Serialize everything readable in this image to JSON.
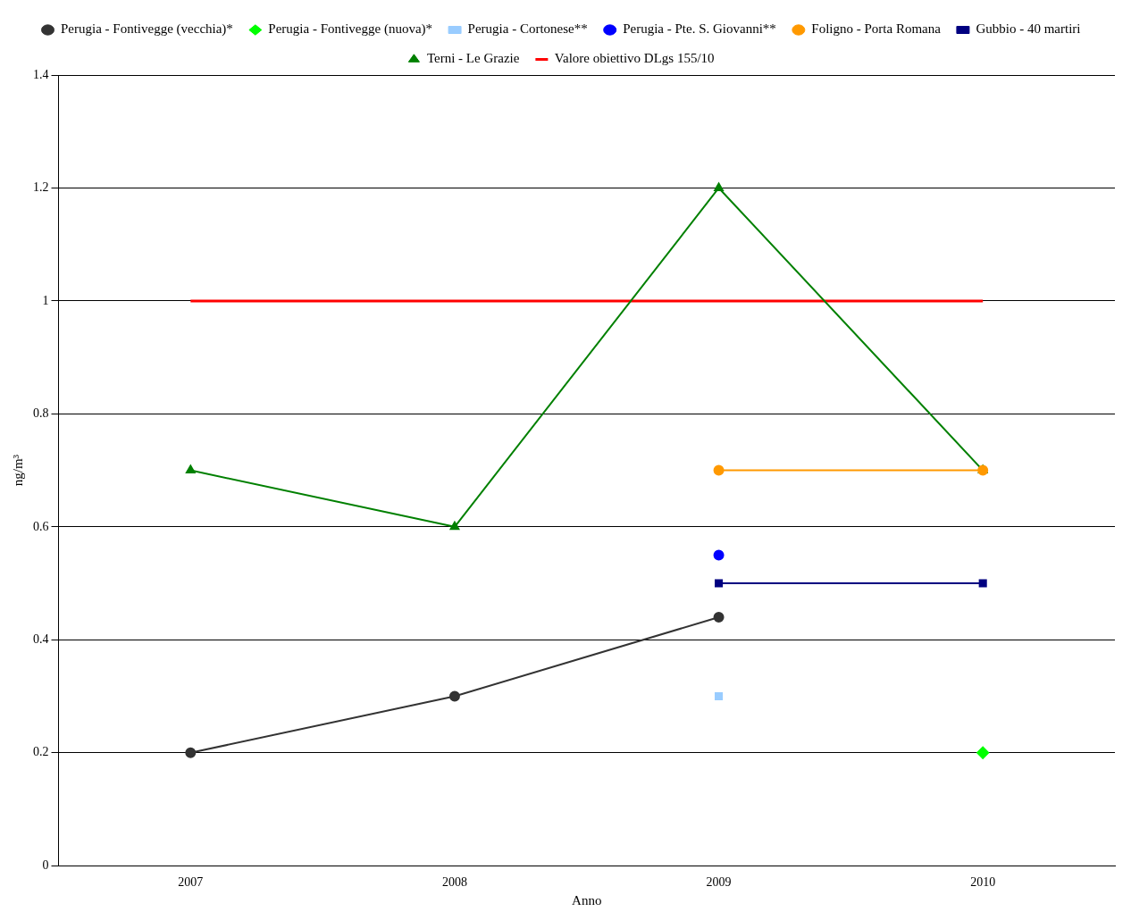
{
  "chart_data": {
    "type": "line",
    "xlabel": "Anno",
    "ylabel": "ng/m³",
    "categories": [
      "2007",
      "2008",
      "2009",
      "2010"
    ],
    "ylim": [
      0,
      1.4
    ],
    "yticks": [
      0,
      0.2,
      0.4,
      0.6,
      0.8,
      1,
      1.2,
      1.4
    ],
    "grid": "y",
    "legend": "top",
    "series": [
      {
        "name": "Perugia - Fontivegge (vecchia)*",
        "color": "#333333",
        "marker": "circle",
        "values": [
          0.2,
          0.3,
          0.44,
          null
        ]
      },
      {
        "name": "Perugia - Fontivegge (nuova)*",
        "color": "#00ff00",
        "marker": "diamond",
        "values": [
          null,
          null,
          null,
          0.2
        ]
      },
      {
        "name": "Perugia - Cortonese**",
        "color": "#99ccff",
        "marker": "square",
        "values": [
          null,
          null,
          0.3,
          null
        ]
      },
      {
        "name": "Perugia - Pte. S. Giovanni**",
        "color": "#0000ff",
        "marker": "circle",
        "values": [
          null,
          null,
          0.55,
          null
        ]
      },
      {
        "name": "Foligno - Porta Romana",
        "color": "#ff9900",
        "marker": "circle",
        "values": [
          null,
          null,
          0.7,
          0.7
        ]
      },
      {
        "name": "Gubbio - 40 martiri",
        "color": "#000080",
        "marker": "square",
        "values": [
          null,
          null,
          0.5,
          0.5
        ]
      },
      {
        "name": "Terni - Le Grazie",
        "color": "#008000",
        "marker": "triangle",
        "values": [
          0.7,
          0.6,
          1.2,
          0.7
        ]
      },
      {
        "name": "Valore obiettivo DLgs 155/10",
        "color": "#ff0000",
        "marker": "none",
        "values": [
          1,
          1,
          1,
          1
        ]
      }
    ]
  }
}
